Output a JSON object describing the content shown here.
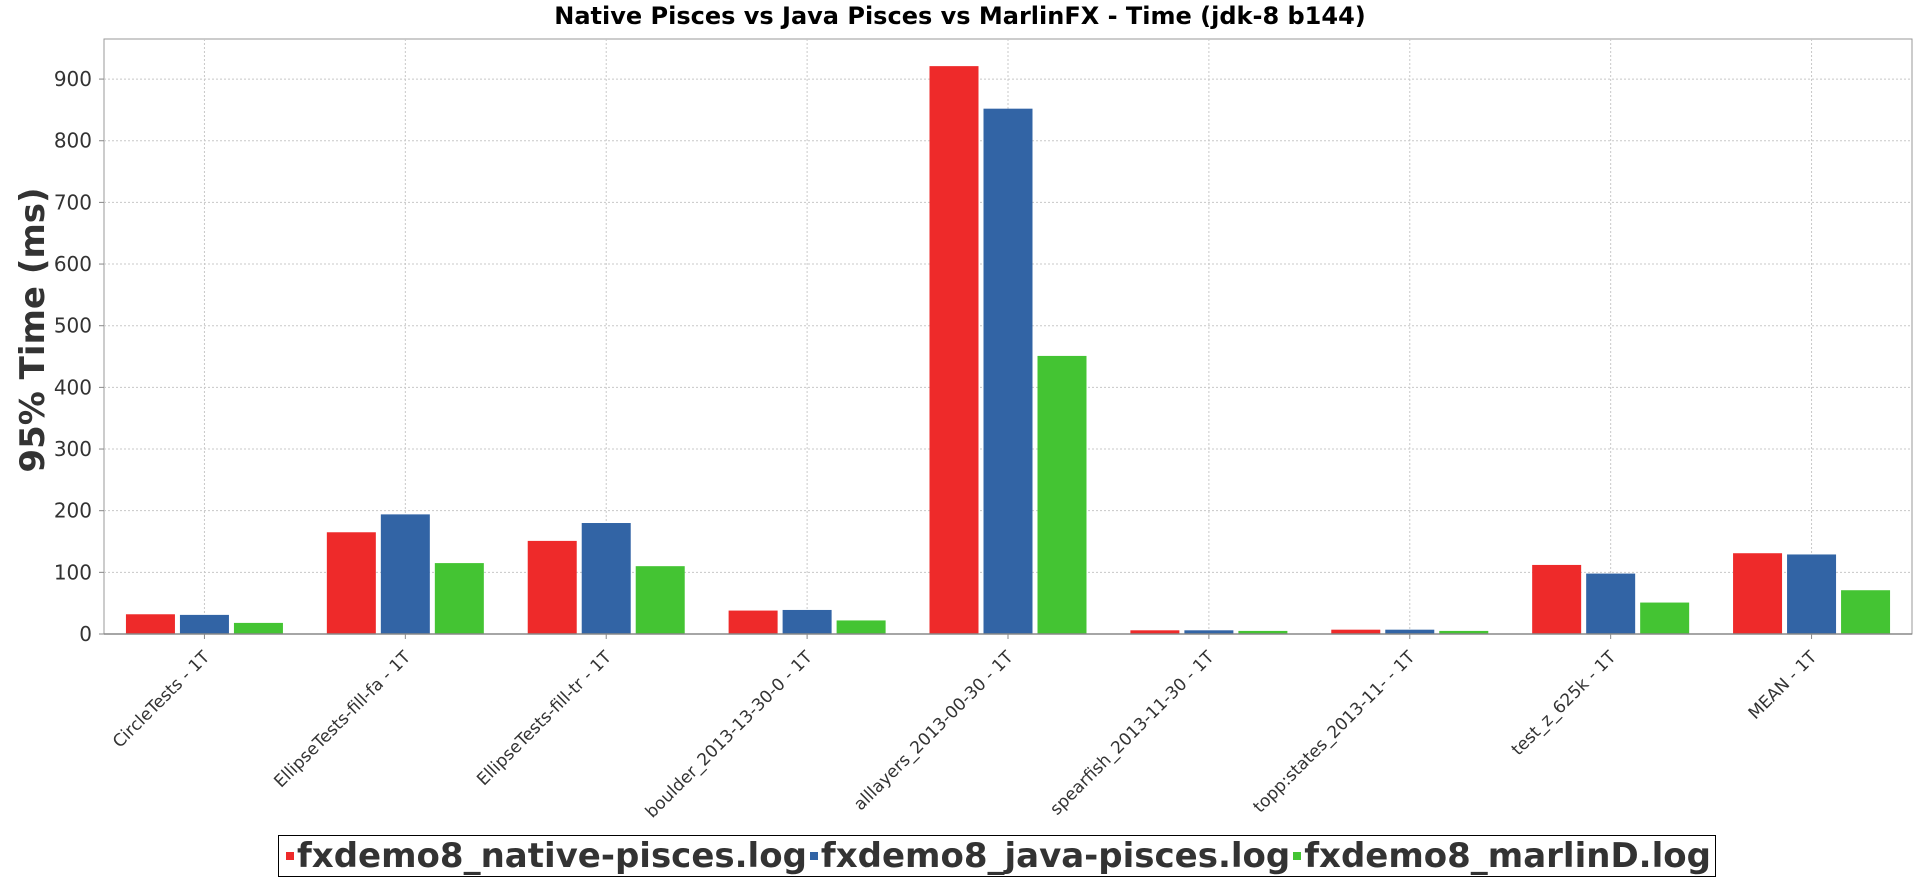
{
  "chart_data": {
    "type": "bar",
    "title": "Native Pisces vs Java Pisces vs MarlinFX - Time (jdk-8 b144)",
    "ylabel": "95% Time (ms)",
    "xlabel": "",
    "ylim": [
      0,
      965
    ],
    "yticks": [
      "0",
      "100",
      "200",
      "300",
      "400",
      "500",
      "600",
      "700",
      "800",
      "900"
    ],
    "grid": true,
    "legend_position": "bottom",
    "categories": [
      "CircleTests - 1T",
      "EllipseTests-fill-fa - 1T",
      "EllipseTests-fill-tr - 1T",
      "boulder_2013-13-30-0 - 1T",
      "alllayers_2013-00-30 - 1T",
      "spearfish_2013-11-30 - 1T",
      "topp:states_2013-11- - 1T",
      "test_z_625k - 1T",
      "MEAN - 1T"
    ],
    "series": [
      {
        "name": "fxdemo8_native-pisces.log",
        "color": "#ee2a2a",
        "values": [
          32,
          165,
          151,
          38,
          921,
          6,
          7,
          112,
          131
        ]
      },
      {
        "name": "fxdemo8_java-pisces.log",
        "color": "#3264a5",
        "values": [
          31,
          194,
          180,
          39,
          852,
          6,
          7,
          98,
          129
        ]
      },
      {
        "name": "fxdemo8_marlinD.log",
        "color": "#44c433",
        "values": [
          18,
          115,
          110,
          22,
          451,
          5,
          5,
          51,
          71
        ]
      }
    ]
  }
}
